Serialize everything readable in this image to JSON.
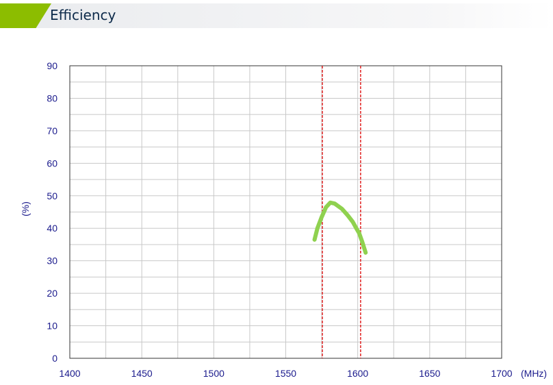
{
  "header": {
    "title": "Efficiency"
  },
  "chart_data": {
    "type": "line",
    "title": "",
    "xlabel": "(MHz)",
    "ylabel": "(%)",
    "xlim": [
      1400,
      1700
    ],
    "ylim": [
      0,
      90
    ],
    "xticks": [
      1400,
      1450,
      1500,
      1550,
      1600,
      1650,
      1700
    ],
    "yticks": [
      0,
      10,
      20,
      30,
      40,
      50,
      60,
      70,
      80,
      90
    ],
    "grid": true,
    "colors": {
      "series": "#8fd14f",
      "markers": "#e02020",
      "axis_text": "#1a1a8c"
    },
    "vertical_markers": [
      1575.42,
      1602
    ],
    "series": [
      {
        "x": [
          1570,
          1572,
          1575,
          1578,
          1581,
          1584,
          1589,
          1593,
          1596.5,
          1599,
          1601,
          1603,
          1605.5
        ],
        "y": [
          36.5,
          40,
          43.5,
          46.5,
          47.9,
          47.6,
          46,
          44,
          42,
          40,
          38.5,
          36,
          32.5
        ]
      }
    ]
  }
}
